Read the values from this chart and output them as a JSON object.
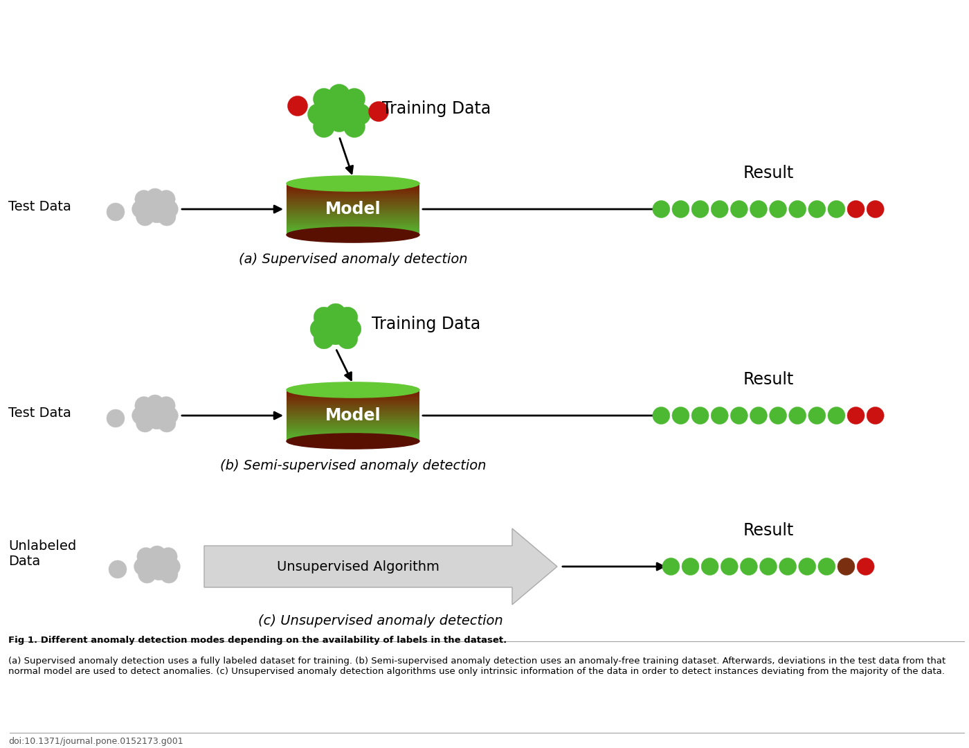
{
  "title_a": "(a) Supervised anomaly detection",
  "title_b": "(b) Semi-supervised anomaly detection",
  "title_c": "(c) Unsupervised anomaly detection",
  "training_data_label": "Training Data",
  "test_data_label_a": "Test Data",
  "test_data_label_b": "Test Data",
  "unlabeled_data_label": "Unlabeled\nData",
  "result_label": "Result",
  "model_label": "Model",
  "unsupervised_label": "Unsupervised Algorithm",
  "green_color": "#4DB832",
  "dark_green": "#2E7D32",
  "red_color": "#CC1111",
  "gray_color": "#B0B0B0",
  "light_gray": "#C0C0C0",
  "arrow_color": "#222222",
  "fig_caption_bold": "Fig 1. Different anomaly detection modes depending on the availability of labels in the dataset.",
  "fig_caption_normal": " (a) Supervised anomaly detection uses a fully labeled dataset for training. (b) Semi-supervised anomaly detection uses an anomaly-free training dataset. Afterwards, deviations in the test data from that normal model are used to detect anomalies. (c) Unsupervised anomaly detection algorithms use only intrinsic information of the data in order to detect instances deviating from the majority of the data.",
  "doi": "doi:10.1371/journal.pone.0152173.g001",
  "background_color": "#FFFFFF"
}
